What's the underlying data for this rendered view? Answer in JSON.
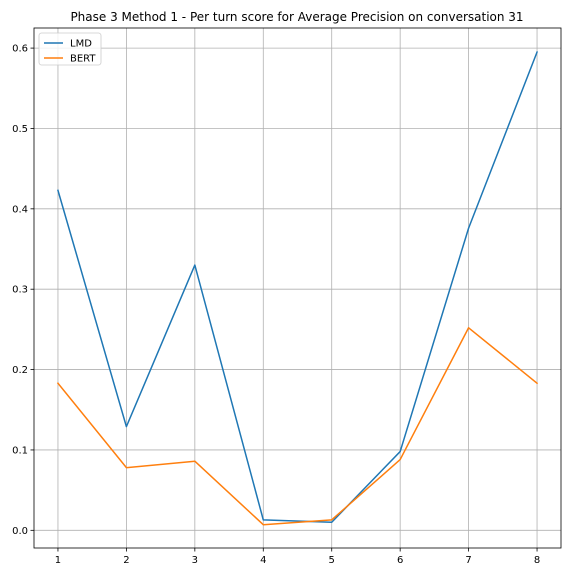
{
  "chart_data": {
    "type": "line",
    "title": "Phase 3 Method 1 - Per turn score for Average Precision on conversation 31",
    "xlabel": "",
    "ylabel": "",
    "x": [
      1,
      2,
      3,
      4,
      5,
      6,
      7,
      8
    ],
    "xticks": [
      "1",
      "2",
      "3",
      "4",
      "5",
      "6",
      "7",
      "8"
    ],
    "yticks": [
      "0.0",
      "0.1",
      "0.2",
      "0.3",
      "0.4",
      "0.5",
      "0.6"
    ],
    "xlim": [
      0.65,
      8.35
    ],
    "ylim": [
      -0.022,
      0.625
    ],
    "grid": true,
    "legend_position": "top-left",
    "series": [
      {
        "name": "LMD",
        "color": "#1f77b4",
        "values": [
          0.423,
          0.129,
          0.33,
          0.013,
          0.01,
          0.098,
          0.376,
          0.595
        ]
      },
      {
        "name": "BERT",
        "color": "#ff7f0e",
        "values": [
          0.183,
          0.078,
          0.086,
          0.007,
          0.013,
          0.088,
          0.252,
          0.183
        ]
      }
    ]
  }
}
